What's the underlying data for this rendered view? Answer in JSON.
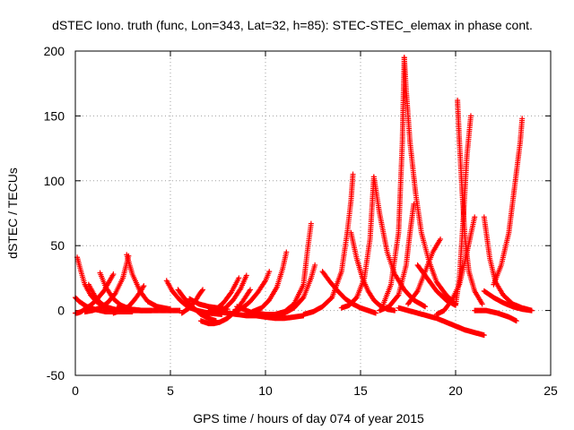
{
  "chart_data": {
    "type": "scatter",
    "title": "dSTEC Iono. truth (func, Lon=343, Lat=32, h=85): STEC-STEC_elemax in phase cont.",
    "xlabel": "GPS time / hours of day 074 of year 2015",
    "ylabel": "dSTEC  / TECUs",
    "xlim": [
      0,
      25
    ],
    "ylim": [
      -50,
      200
    ],
    "xticks": [
      0,
      5,
      10,
      15,
      20,
      25
    ],
    "yticks": [
      -50,
      0,
      50,
      100,
      150,
      200
    ],
    "xtick_labels": [
      "0",
      "5",
      "10",
      "15",
      "20",
      "25"
    ],
    "ytick_labels": [
      "-50",
      "0",
      "50",
      "100",
      "150",
      "200"
    ],
    "grid": true,
    "legend": "none",
    "marker": "+",
    "series_color": "#ff0000",
    "series": [
      {
        "segments": [
          {
            "x": [
              0.0,
              0.2,
              0.4,
              0.6,
              0.8,
              1.0,
              1.3,
              1.6,
              2.0,
              2.5,
              3.0
            ],
            "y": [
              10,
              7,
              5,
              3,
              2,
              1,
              0,
              -1,
              -1,
              -1,
              -1
            ]
          },
          {
            "x": [
              0.0,
              0.1,
              0.3,
              0.5,
              0.8,
              1.1,
              1.5,
              2.0
            ],
            "y": [
              -2,
              -2,
              -1,
              1,
              4,
              8,
              15,
              28
            ]
          }
        ]
      },
      {
        "segments": [
          {
            "x": [
              0.1,
              0.3,
              0.5,
              0.8,
              1.1,
              1.5,
              2.0,
              2.5,
              3.0,
              3.5
            ],
            "y": [
              41,
              30,
              20,
              12,
              7,
              3,
              1,
              0,
              0,
              0
            ]
          }
        ]
      },
      {
        "segments": [
          {
            "x": [
              0.7,
              1.0,
              1.3,
              1.6,
              2.0,
              2.4,
              2.8
            ],
            "y": [
              20,
              12,
              6,
              3,
              1,
              0,
              0
            ]
          },
          {
            "x": [
              0.5,
              0.9,
              1.3,
              1.7,
              2.1,
              2.5,
              2.8
            ],
            "y": [
              -1,
              0,
              2,
              6,
              13,
              25,
              42
            ]
          }
        ]
      },
      {
        "segments": [
          {
            "x": [
              1.3,
              1.6,
              2.0,
              2.4,
              2.9,
              3.5,
              4.0
            ],
            "y": [
              29,
              18,
              9,
              4,
              1,
              0,
              0
            ]
          },
          {
            "x": [
              2.0,
              2.4,
              2.8,
              3.1,
              3.4,
              3.6
            ],
            "y": [
              -2,
              0,
              3,
              8,
              14,
              19
            ]
          }
        ]
      },
      {
        "segments": [
          {
            "x": [
              2.7,
              3.0,
              3.4,
              3.8,
              4.3,
              5.0
            ],
            "y": [
              43,
              28,
              15,
              7,
              3,
              1
            ]
          },
          {
            "x": [
              2.2,
              2.8,
              3.4,
              4.0,
              4.8,
              5.5
            ],
            "y": [
              2,
              1,
              0,
              0,
              0,
              0
            ]
          }
        ]
      },
      {
        "segments": [
          {
            "x": [
              4.8,
              5.1,
              5.5,
              5.9,
              6.4,
              7.0,
              7.7
            ],
            "y": [
              23,
              15,
              8,
              3,
              0,
              -2,
              -3
            ]
          },
          {
            "x": [
              5.4,
              5.7,
              6.0,
              6.3,
              6.6,
              7.0,
              7.4
            ],
            "y": [
              16,
              10,
              5,
              1,
              -3,
              -6,
              -8
            ]
          },
          {
            "x": [
              5.6,
              6.0,
              6.3,
              6.5,
              6.7
            ],
            "y": [
              -2,
              2,
              7,
              12,
              16
            ]
          }
        ]
      },
      {
        "segments": [
          {
            "x": [
              6.6,
              7.0,
              7.3,
              7.6,
              8.0,
              8.4,
              8.8,
              9.2
            ],
            "y": [
              -8,
              -10,
              -10,
              -9,
              -6,
              -1,
              7,
              16
            ]
          },
          {
            "x": [
              7.0,
              7.4,
              7.8,
              8.2,
              8.6
            ],
            "y": [
              -3,
              1,
              6,
              14,
              25
            ]
          },
          {
            "x": [
              7.5,
              7.9,
              8.3,
              8.7,
              9.0
            ],
            "y": [
              -2,
              2,
              8,
              17,
              27
            ]
          },
          {
            "x": [
              8.3,
              8.8,
              9.2,
              9.6,
              10.0,
              10.2
            ],
            "y": [
              -1,
              2,
              7,
              14,
              23,
              30
            ]
          }
        ]
      },
      {
        "segments": [
          {
            "x": [
              6.0,
              6.5,
              7.0,
              7.5,
              8.0
            ],
            "y": [
              9,
              5,
              3,
              2,
              1
            ]
          },
          {
            "x": [
              7.0,
              7.5,
              8.0,
              8.5,
              9.0,
              9.5,
              10.0
            ],
            "y": [
              0,
              -1,
              -2,
              -3,
              -4,
              -4,
              -5
            ]
          }
        ]
      },
      {
        "segments": [
          {
            "x": [
              8.5,
              9.0,
              9.5,
              10.0,
              10.5,
              11.0,
              11.5,
              12.0
            ],
            "y": [
              3,
              0,
              -3,
              -5,
              -6,
              -6,
              -5,
              -4
            ]
          },
          {
            "x": [
              9.3,
              9.8,
              10.2,
              10.6,
              10.9,
              11.1
            ],
            "y": [
              -1,
              2,
              8,
              18,
              32,
              45
            ]
          }
        ]
      },
      {
        "segments": [
          {
            "x": [
              9.5,
              10.0,
              10.5,
              11.0,
              11.5,
              12.0,
              12.2,
              12.4
            ],
            "y": [
              -2,
              -3,
              -3,
              -1,
              5,
              20,
              45,
              67
            ]
          },
          {
            "x": [
              10.5,
              11.0,
              11.5,
              12.0,
              12.4,
              12.6
            ],
            "y": [
              -4,
              -2,
              2,
              10,
              25,
              35
            ]
          }
        ]
      },
      {
        "segments": [
          {
            "x": [
              12.0,
              12.5,
              13.0,
              13.5,
              14.0,
              14.3,
              14.5,
              14.6
            ],
            "y": [
              -3,
              -1,
              3,
              10,
              30,
              60,
              85,
              105
            ]
          },
          {
            "x": [
              13.0,
              13.4,
              13.8,
              14.2,
              14.6,
              15.0,
              15.4,
              15.8
            ],
            "y": [
              30,
              22,
              15,
              9,
              5,
              2,
              0,
              -2
            ]
          }
        ]
      },
      {
        "segments": [
          {
            "x": [
              14.5,
              14.8,
              15.1,
              15.4,
              15.7,
              16.0,
              16.4,
              16.8
            ],
            "y": [
              60,
              40,
              25,
              15,
              8,
              4,
              1,
              0
            ]
          },
          {
            "x": [
              14.0,
              14.4,
              14.8,
              15.2,
              15.5,
              15.7
            ],
            "y": [
              2,
              4,
              10,
              25,
              55,
              103
            ]
          }
        ]
      },
      {
        "segments": [
          {
            "x": [
              15.7,
              16.0,
              16.4,
              16.8,
              17.3,
              17.8,
              18.4
            ],
            "y": [
              103,
              75,
              45,
              28,
              16,
              8,
              3
            ]
          },
          {
            "x": [
              16.0,
              16.5,
              17.0,
              17.4,
              17.6,
              17.8
            ],
            "y": [
              0,
              3,
              12,
              35,
              60,
              82
            ]
          }
        ]
      },
      {
        "segments": [
          {
            "x": [
              17.3,
              17.4,
              17.6,
              17.9,
              18.2,
              18.6,
              19.0,
              19.5,
              20.0
            ],
            "y": [
              195,
              170,
              130,
              90,
              60,
              38,
              22,
              12,
              5
            ]
          },
          {
            "x": [
              16.2,
              16.6,
              17.0,
              17.2,
              17.3
            ],
            "y": [
              5,
              20,
              60,
              130,
              195
            ]
          }
        ]
      },
      {
        "segments": [
          {
            "x": [
              17.0,
              17.5,
              18.0,
              18.5,
              19.0,
              19.5,
              20.0,
              20.5,
              21.0,
              21.5
            ],
            "y": [
              2,
              0,
              -2,
              -4,
              -6,
              -9,
              -12,
              -15,
              -17,
              -19
            ]
          },
          {
            "x": [
              17.5,
              18.0,
              18.4,
              18.8,
              19.2
            ],
            "y": [
              5,
              15,
              30,
              45,
              55
            ]
          }
        ]
      },
      {
        "segments": [
          {
            "x": [
              18.0,
              18.5,
              19.0,
              19.5,
              20.0,
              20.2,
              20.4,
              20.6,
              20.8
            ],
            "y": [
              35,
              25,
              15,
              8,
              4,
              25,
              70,
              120,
              150
            ]
          },
          {
            "x": [
              20.1,
              20.2,
              20.35,
              20.5,
              20.7,
              21.0,
              21.4
            ],
            "y": [
              162,
              130,
              90,
              55,
              30,
              15,
              5
            ]
          }
        ]
      },
      {
        "segments": [
          {
            "x": [
              19.0,
              19.4,
              19.8,
              20.2,
              20.6,
              21.0
            ],
            "y": [
              -3,
              0,
              8,
              20,
              45,
              72
            ]
          },
          {
            "x": [
              21.5,
              21.8,
              22.1,
              22.5,
              23.0,
              23.5,
              24.0
            ],
            "y": [
              72,
              40,
              22,
              12,
              5,
              2,
              0
            ]
          }
        ]
      },
      {
        "segments": [
          {
            "x": [
              21.5,
              22.0,
              22.5,
              23.0,
              23.5,
              24.0
            ],
            "y": [
              15,
              10,
              6,
              3,
              1,
              0
            ]
          },
          {
            "x": [
              22.0,
              22.4,
              22.8,
              23.1,
              23.4,
              23.5
            ],
            "y": [
              20,
              35,
              60,
              95,
              130,
              148
            ]
          },
          {
            "x": [
              21.0,
              21.6,
              22.2,
              22.8,
              23.2
            ],
            "y": [
              0,
              0,
              -2,
              -5,
              -8
            ]
          }
        ]
      }
    ]
  }
}
